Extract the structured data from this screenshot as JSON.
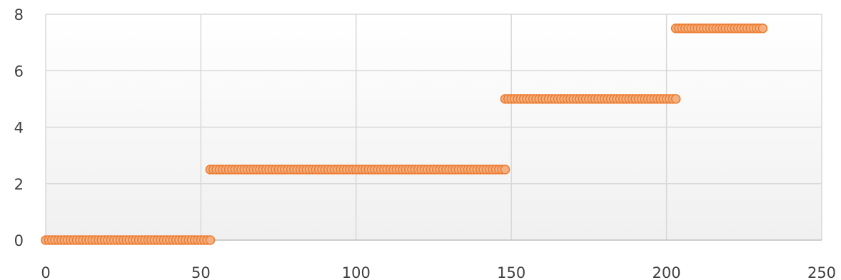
{
  "chart_data": {
    "type": "scatter",
    "title": "",
    "xlabel": "",
    "ylabel": "",
    "xlim": [
      0,
      250
    ],
    "ylim": [
      0,
      8
    ],
    "x_ticks": [
      0,
      50,
      100,
      150,
      200,
      250
    ],
    "y_ticks": [
      0,
      2,
      4,
      6,
      8
    ],
    "x_tick_labels": [
      "0",
      "50",
      "100",
      "150",
      "200",
      "250"
    ],
    "y_tick_labels": [
      "0",
      "2",
      "4",
      "6",
      "8"
    ],
    "grid": true,
    "legend": "none",
    "marker_fill": "#f4b183",
    "marker_stroke": "#ed7d31",
    "series": [
      {
        "segments": [
          {
            "x_start": 0,
            "x_end": 53,
            "y": 0
          },
          {
            "x_start": 53,
            "x_end": 148,
            "y": 2.5
          },
          {
            "x_start": 148,
            "x_end": 203,
            "y": 5
          },
          {
            "x_start": 203,
            "x_end": 231,
            "y": 7.5
          }
        ]
      }
    ]
  }
}
